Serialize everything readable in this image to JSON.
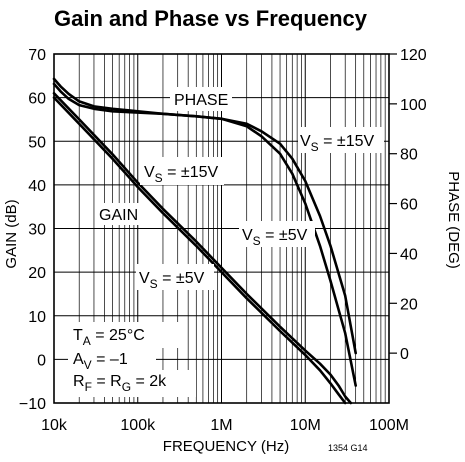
{
  "chart_data": {
    "type": "line",
    "title": "Gain and Phase vs Frequency",
    "xlabel": "FREQUENCY (Hz)",
    "ylabel_left": "GAIN (dB)",
    "ylabel_right": "PHASE (DEG)",
    "x_scale": "log",
    "xlim": [
      10000,
      100000000
    ],
    "ylim_left": [
      -10,
      70
    ],
    "ylim_right": [
      -20,
      120
    ],
    "x_ticks": [
      {
        "value": 10000,
        "label": "10k"
      },
      {
        "value": 100000,
        "label": "100k"
      },
      {
        "value": 1000000,
        "label": "1M"
      },
      {
        "value": 10000000,
        "label": "10M"
      },
      {
        "value": 100000000,
        "label": "100M"
      }
    ],
    "y_ticks_left": [
      -10,
      0,
      10,
      20,
      30,
      40,
      50,
      60,
      70
    ],
    "y_ticks_right": [
      0,
      20,
      40,
      60,
      80,
      100,
      120
    ],
    "grid": true,
    "legend": "none",
    "series": [
      {
        "name": "GAIN, VS = ±15V",
        "axis": "left",
        "x": [
          10000,
          20000,
          50000,
          100000,
          200000,
          500000,
          1000000,
          2000000,
          5000000,
          10000000,
          15000000,
          20000000,
          25000000,
          30000000,
          35000000
        ],
        "y": [
          61,
          55,
          47,
          40.5,
          34.5,
          27,
          21,
          15,
          7.5,
          2,
          -1,
          -3.5,
          -6,
          -8.5,
          -10
        ]
      },
      {
        "name": "GAIN, VS = ±5V",
        "axis": "left",
        "x": [
          10000,
          20000,
          50000,
          100000,
          200000,
          500000,
          1000000,
          2000000,
          5000000,
          10000000,
          15000000,
          20000000,
          25000000,
          30000000
        ],
        "y": [
          60,
          54,
          46,
          39.5,
          33.5,
          26,
          20,
          14,
          6.5,
          1,
          -2.5,
          -5.5,
          -8,
          -10
        ]
      },
      {
        "name": "PHASE, VS = ±15V",
        "axis": "right",
        "x": [
          10000,
          12000,
          15000,
          20000,
          30000,
          50000,
          100000,
          200000,
          500000,
          1000000,
          2000000,
          3000000,
          5000000,
          7000000,
          10000000,
          15000000,
          20000000,
          30000000,
          40000000
        ],
        "y": [
          110,
          107,
          104,
          101,
          99,
          98,
          97,
          96,
          95,
          94,
          92,
          89,
          84,
          78,
          69,
          55,
          43,
          23,
          0
        ]
      },
      {
        "name": "PHASE, VS = ±5V",
        "axis": "right",
        "x": [
          10000,
          12000,
          15000,
          20000,
          30000,
          50000,
          100000,
          200000,
          500000,
          1000000,
          2000000,
          3000000,
          5000000,
          7000000,
          10000000,
          15000000,
          20000000,
          30000000,
          40000000
        ],
        "y": [
          108,
          105,
          102,
          99.5,
          98,
          97,
          96.5,
          96,
          95,
          94,
          91,
          87,
          80,
          72,
          60,
          43,
          29,
          8,
          -13
        ]
      }
    ],
    "annotations": [
      {
        "text": "PHASE"
      },
      {
        "main": "V",
        "sub": "S",
        "rest": " = ±15V"
      },
      {
        "main": "V",
        "sub": "S",
        "rest": " = ±15V"
      },
      {
        "text": "GAIN"
      },
      {
        "main": "V",
        "sub": "S",
        "rest": " = ±5V"
      },
      {
        "main": "V",
        "sub": "S",
        "rest": " = ±5V"
      },
      {
        "main": "T",
        "sub": "A",
        "rest": " = 25°C"
      },
      {
        "main": "A",
        "sub": "V",
        "rest": " = –1"
      },
      {
        "main": "R",
        "sub": "F",
        "mid": " = R",
        "sub2": "G",
        "rest": " = 2k"
      }
    ],
    "figure_id": "1354 G14"
  }
}
